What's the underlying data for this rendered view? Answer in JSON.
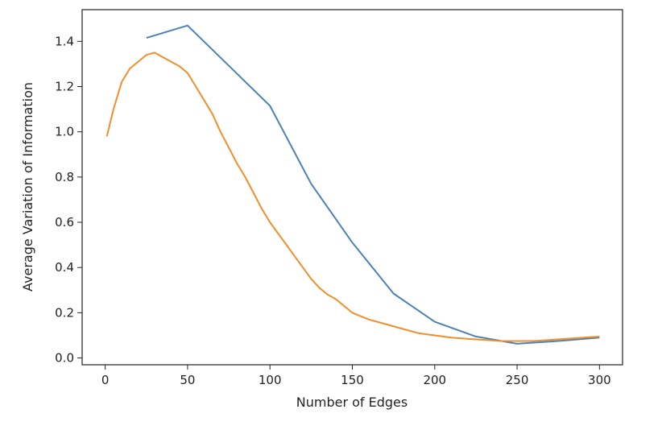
{
  "chart_data": {
    "type": "line",
    "title": "",
    "xlabel": "Number of Edges",
    "ylabel": "Average Variation of Information",
    "xlim": [
      -14,
      314
    ],
    "ylim": [
      -0.03,
      1.54
    ],
    "xticks": [
      0,
      50,
      100,
      150,
      200,
      250,
      300
    ],
    "yticks": [
      0.0,
      0.2,
      0.4,
      0.6,
      0.8,
      1.0,
      1.2,
      1.4
    ],
    "xtick_labels": [
      "0",
      "50",
      "100",
      "150",
      "200",
      "250",
      "300"
    ],
    "ytick_labels": [
      "0.0",
      "0.2",
      "0.4",
      "0.6",
      "0.8",
      "1.0",
      "1.2",
      "1.4"
    ],
    "grid": false,
    "legend": "none",
    "series": [
      {
        "color": "#4c82b4",
        "x": [
          25,
          50,
          100,
          125,
          150,
          175,
          200,
          225,
          250,
          275,
          300
        ],
        "y": [
          1.415,
          1.47,
          1.115,
          0.77,
          0.51,
          0.285,
          0.16,
          0.095,
          0.063,
          0.075,
          0.09
        ]
      },
      {
        "color": "#f28e2b",
        "x": [
          1,
          5,
          10,
          15,
          20,
          25,
          30,
          35,
          40,
          45,
          50,
          55,
          60,
          65,
          70,
          75,
          80,
          85,
          90,
          95,
          100,
          105,
          110,
          115,
          120,
          125,
          130,
          135,
          140,
          145,
          150,
          160,
          170,
          180,
          190,
          200,
          210,
          220,
          230,
          240,
          250,
          260,
          270,
          280,
          290,
          300
        ],
        "y": [
          0.98,
          1.1,
          1.22,
          1.28,
          1.31,
          1.34,
          1.35,
          1.33,
          1.31,
          1.29,
          1.26,
          1.2,
          1.14,
          1.08,
          1.0,
          0.93,
          0.86,
          0.8,
          0.73,
          0.66,
          0.6,
          0.55,
          0.5,
          0.45,
          0.4,
          0.35,
          0.31,
          0.28,
          0.26,
          0.23,
          0.2,
          0.17,
          0.15,
          0.13,
          0.11,
          0.1,
          0.09,
          0.085,
          0.08,
          0.075,
          0.075,
          0.075,
          0.08,
          0.085,
          0.09,
          0.095
        ]
      }
    ]
  }
}
